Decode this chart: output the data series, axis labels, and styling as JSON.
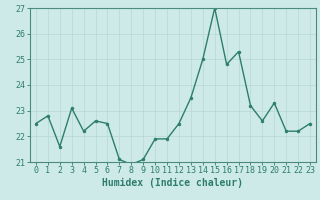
{
  "x": [
    0,
    1,
    2,
    3,
    4,
    5,
    6,
    7,
    8,
    9,
    10,
    11,
    12,
    13,
    14,
    15,
    16,
    17,
    18,
    19,
    20,
    21,
    22,
    23
  ],
  "y": [
    22.5,
    22.8,
    21.6,
    23.1,
    22.2,
    22.6,
    22.5,
    21.1,
    20.9,
    21.1,
    21.9,
    21.9,
    22.5,
    23.5,
    25.0,
    27.0,
    24.8,
    25.3,
    23.2,
    22.6,
    23.3,
    22.2,
    22.2,
    22.5
  ],
  "line_color": "#2d7d6e",
  "marker_color": "#2d7d6e",
  "bg_color": "#ceeae8",
  "grid_color": "#b8d8d5",
  "xlabel": "Humidex (Indice chaleur)",
  "ylim": [
    21,
    27
  ],
  "xlim_min": -0.5,
  "xlim_max": 23.5,
  "yticks": [
    21,
    22,
    23,
    24,
    25,
    26,
    27
  ],
  "xtick_labels": [
    "0",
    "1",
    "2",
    "3",
    "4",
    "5",
    "6",
    "7",
    "8",
    "9",
    "10",
    "11",
    "12",
    "13",
    "14",
    "15",
    "16",
    "17",
    "18",
    "19",
    "20",
    "21",
    "22",
    "23"
  ],
  "xlabel_fontsize": 7,
  "tick_fontsize": 6,
  "linewidth": 1.0,
  "markersize": 2.0
}
